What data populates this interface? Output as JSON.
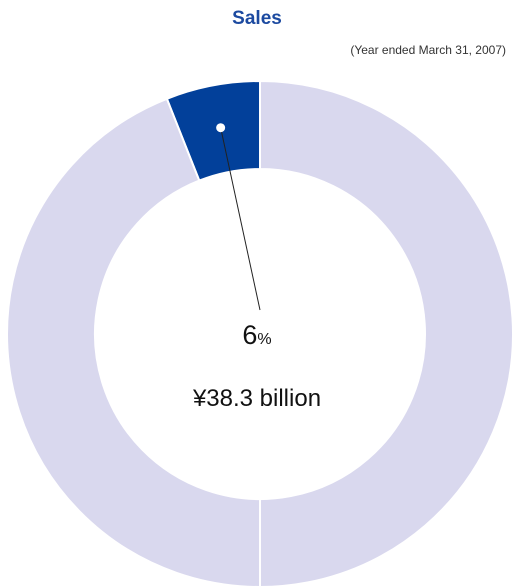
{
  "chart_data": {
    "type": "pie",
    "title": "Sales",
    "subtitle": "(Year ended March 31, 2007)",
    "slices": [
      {
        "value": 6,
        "color": "#02409a",
        "highlighted": true
      },
      {
        "value": 94,
        "color": "#d9d8ee",
        "highlighted": false
      }
    ],
    "center_label": {
      "percent": "6",
      "percent_unit": "%",
      "amount": "¥38.3 billion"
    },
    "legend": "none"
  }
}
